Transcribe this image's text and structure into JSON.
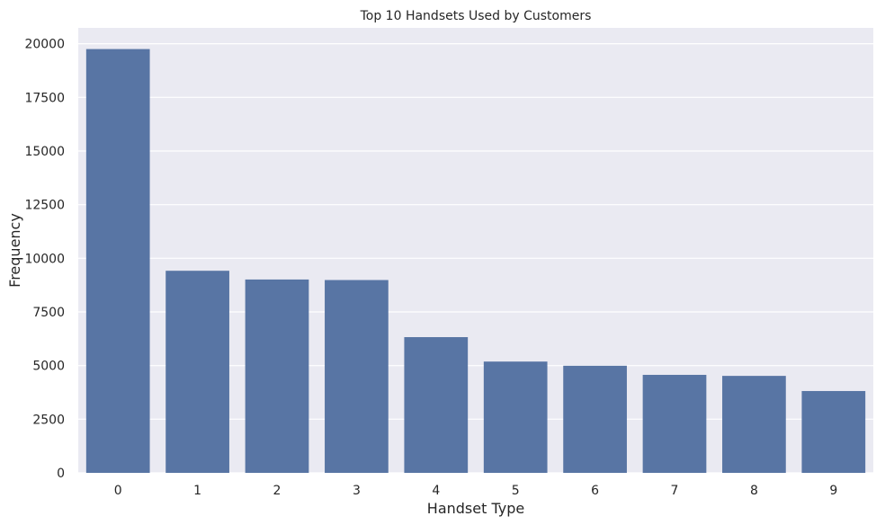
{
  "chart_data": {
    "type": "bar",
    "title": "Top 10 Handsets Used by Customers",
    "xlabel": "Handset Type",
    "ylabel": "Frequency",
    "categories": [
      "0",
      "1",
      "2",
      "3",
      "4",
      "5",
      "6",
      "7",
      "8",
      "9"
    ],
    "values": [
      19752,
      9419,
      9012,
      8987,
      6326,
      5187,
      4993,
      4568,
      4520,
      3814
    ],
    "ylim": [
      0,
      20740
    ],
    "yticks": [
      0,
      2500,
      5000,
      7500,
      10000,
      12500,
      15000,
      17500,
      20000
    ],
    "ytick_labels": [
      "0",
      "2500",
      "5000",
      "7500",
      "10000",
      "12500",
      "15000",
      "17500",
      "20000"
    ],
    "grid": true,
    "legend": "none",
    "colors": {
      "bar": "#5875a4",
      "plot_background": "#eaeaf2",
      "grid": "#ffffff",
      "text": "#262626"
    }
  }
}
